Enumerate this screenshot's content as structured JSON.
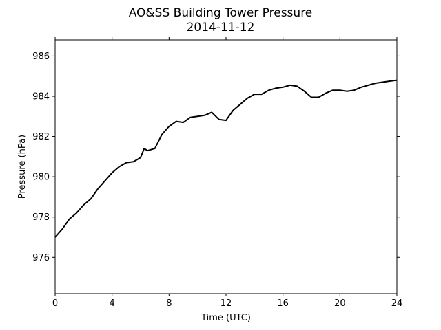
{
  "chart_data": {
    "type": "line",
    "title": "AO&SS Building Tower Pressure",
    "subtitle": "2014-11-12",
    "xlabel": "Time (UTC)",
    "ylabel": "Pressure (hPa)",
    "xlim": [
      0,
      24
    ],
    "ylim": [
      974.2,
      986.8
    ],
    "xticks": [
      0,
      4,
      8,
      12,
      16,
      20,
      24
    ],
    "yticks": [
      976,
      978,
      980,
      982,
      984,
      986
    ],
    "grid": false,
    "legend": "none",
    "line_color": "#000000",
    "series": [
      {
        "x": [
          0,
          0.5,
          1,
          1.5,
          2,
          2.5,
          3,
          3.5,
          4,
          4.5,
          5,
          5.5,
          6,
          6.25,
          6.5,
          7,
          7.5,
          8,
          8.5,
          9,
          9.5,
          10,
          10.5,
          11,
          11.5,
          12,
          12.5,
          13,
          13.5,
          14,
          14.5,
          15,
          15.5,
          16,
          16.5,
          17,
          17.5,
          18,
          18.5,
          19,
          19.5,
          20,
          20.5,
          21,
          21.5,
          22,
          22.5,
          23,
          23.5,
          24
        ],
        "y": [
          977.0,
          977.4,
          977.9,
          978.2,
          978.6,
          978.9,
          979.4,
          979.8,
          980.2,
          980.5,
          980.7,
          980.75,
          980.95,
          981.4,
          981.3,
          981.4,
          982.1,
          982.5,
          982.75,
          982.7,
          982.95,
          983.0,
          983.05,
          983.2,
          982.85,
          982.8,
          983.3,
          983.6,
          983.9,
          984.1,
          984.1,
          984.3,
          984.4,
          984.45,
          984.55,
          984.5,
          984.25,
          983.95,
          983.95,
          984.15,
          984.3,
          984.3,
          984.25,
          984.3,
          984.45,
          984.55,
          984.65,
          984.7,
          984.75,
          984.8
        ]
      }
    ]
  }
}
